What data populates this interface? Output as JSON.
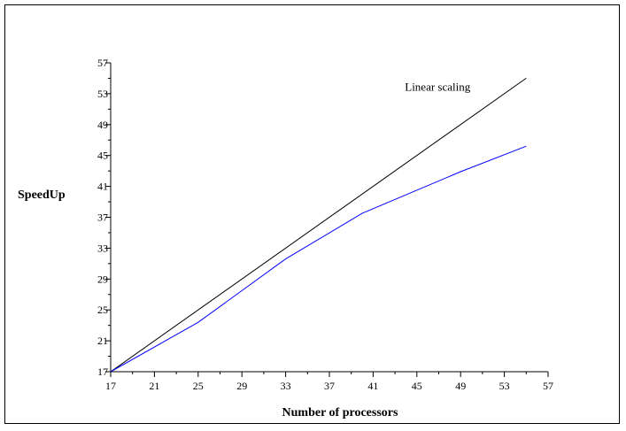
{
  "chart_data": {
    "type": "line",
    "title": "",
    "xlabel": "Number of processors",
    "ylabel": "SpeedUp",
    "xlim": [
      17,
      57
    ],
    "ylim": [
      17,
      57
    ],
    "xticks": [
      17,
      21,
      25,
      29,
      33,
      37,
      41,
      45,
      49,
      53,
      57
    ],
    "yticks": [
      17,
      21,
      25,
      29,
      33,
      37,
      41,
      45,
      49,
      53,
      57
    ],
    "grid": false,
    "series": [
      {
        "name": "Linear scaling",
        "color": "#000000",
        "x": [
          17,
          55
        ],
        "y": [
          17,
          55
        ]
      },
      {
        "color": "#0000ff",
        "x": [
          17,
          25,
          33,
          40,
          49,
          55
        ],
        "y": [
          17,
          23.4,
          31.6,
          37.5,
          42.9,
          46.2
        ]
      }
    ],
    "annotations": [
      {
        "text": "Linear scaling",
        "x": 46.9,
        "y": 53.4
      }
    ]
  }
}
